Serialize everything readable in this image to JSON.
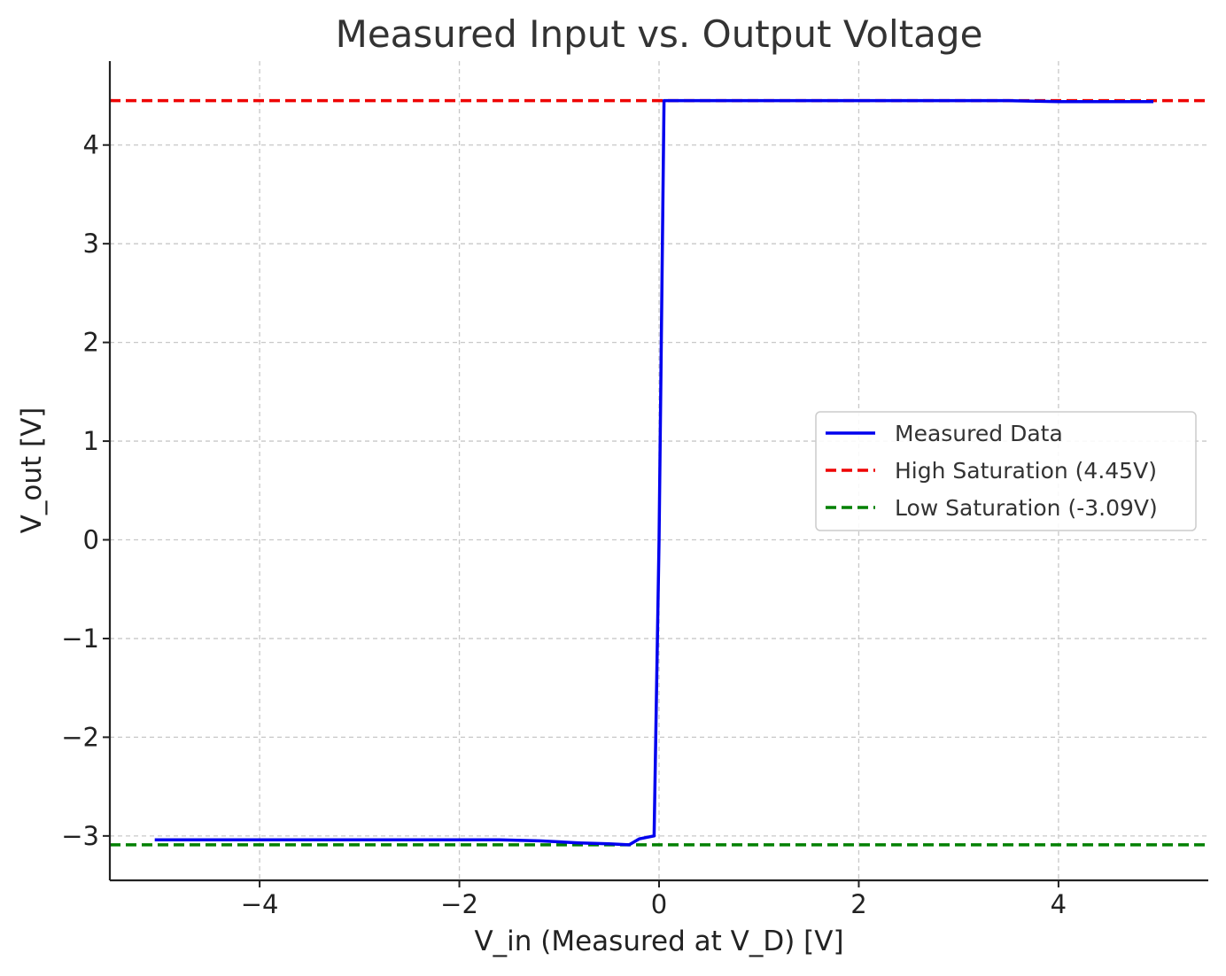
{
  "chart_data": {
    "type": "line",
    "title": "Measured Input vs. Output Voltage",
    "xlabel": "V_in (Measured at V_D) [V]",
    "ylabel": "V_out [V]",
    "xlim": [
      -5.5,
      5.5
    ],
    "ylim": [
      -3.45,
      4.85
    ],
    "xticks": [
      -4,
      -2,
      0,
      2,
      4
    ],
    "xtick_labels": [
      "−4",
      "−2",
      "0",
      "2",
      "4"
    ],
    "yticks": [
      -3,
      -2,
      -1,
      0,
      1,
      2,
      3,
      4
    ],
    "ytick_labels": [
      "−3",
      "−2",
      "−1",
      "0",
      "1",
      "2",
      "3",
      "4"
    ],
    "grid": true,
    "legend_position": "center-right",
    "series": [
      {
        "name": "Measured Data",
        "color": "#0000ee",
        "style": "solid",
        "x": [
          -5.05,
          -4.0,
          -3.0,
          -2.0,
          -1.6,
          -1.2,
          -0.8,
          -0.5,
          -0.3,
          -0.2,
          -0.05,
          0.0,
          0.05,
          1.0,
          2.0,
          3.0,
          3.5,
          4.0,
          4.95
        ],
        "y": [
          -3.04,
          -3.04,
          -3.04,
          -3.04,
          -3.04,
          -3.05,
          -3.07,
          -3.08,
          -3.09,
          -3.03,
          -3.0,
          0.0,
          4.45,
          4.45,
          4.45,
          4.45,
          4.45,
          4.44,
          4.44
        ]
      },
      {
        "name": "High Saturation (4.45V)",
        "color": "#ee0000",
        "style": "dashed",
        "hline": 4.45
      },
      {
        "name": "Low Saturation (-3.09V)",
        "color": "#008000",
        "style": "dashed",
        "hline": -3.09
      }
    ]
  }
}
